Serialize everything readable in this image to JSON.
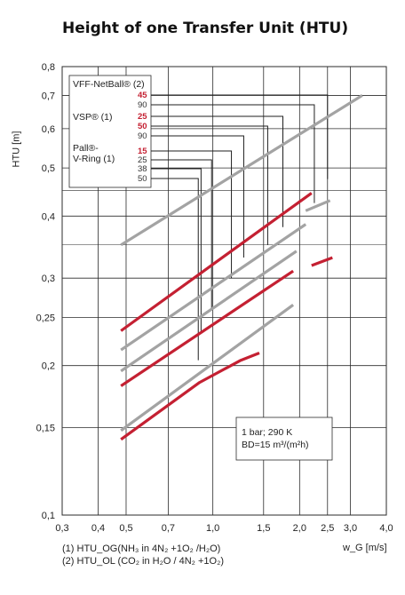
{
  "chart_data": {
    "type": "line",
    "title": "Height of one Transfer Unit (HTU)",
    "xlabel": "w_G [m/s]",
    "ylabel": "HTU [m]",
    "x_scale": "log",
    "y_scale": "log",
    "xlim": [
      0.3,
      4.0
    ],
    "ylim": [
      0.1,
      0.8
    ],
    "x_ticks": [
      "0,3",
      "0,4",
      "0,5",
      "0,7",
      "1,0",
      "1,5",
      "2,0",
      "2,5",
      "3,0",
      "4,0"
    ],
    "x_tick_values": [
      0.3,
      0.4,
      0.5,
      0.7,
      1.0,
      1.5,
      2.0,
      2.5,
      3.0,
      4.0
    ],
    "y_ticks": [
      "0,1",
      "0,15",
      "0,2",
      "0,25",
      "0,3",
      "0,4",
      "0,5",
      "0,6",
      "0,7",
      "0,8"
    ],
    "y_tick_values": [
      0.1,
      0.15,
      0.2,
      0.25,
      0.3,
      0.4,
      0.5,
      0.6,
      0.7,
      0.8
    ],
    "grid": true,
    "colors": {
      "red": "#c42032",
      "gray": "#a3a3a3"
    },
    "legend_box": {
      "groups": [
        {
          "name": "VFF-NetBall® (2)",
          "labels": [
            {
              "text": "45",
              "color": "red"
            },
            {
              "text": "90",
              "color": "gray"
            }
          ]
        },
        {
          "name": "VSP® (1)",
          "labels": [
            {
              "text": "25",
              "color": "red"
            },
            {
              "text": "50",
              "color": "red"
            },
            {
              "text": "90",
              "color": "gray"
            }
          ]
        },
        {
          "name_lines": [
            "Pall®-",
            "V-Ring (1)"
          ],
          "labels": [
            {
              "text": "15",
              "color": "red"
            },
            {
              "text": "25",
              "color": "gray"
            },
            {
              "text": "38",
              "color": "gray"
            },
            {
              "text": "50",
              "color": "gray"
            }
          ]
        }
      ]
    },
    "annotation": {
      "line1": "1 bar; 290 K",
      "line2": "BD=15 m³/(m²h)"
    },
    "series": [
      {
        "color": "gray",
        "points": [
          [
            0.48,
            0.35
          ],
          [
            3.3,
            0.7
          ]
        ]
      },
      {
        "color": "red",
        "points": [
          [
            0.48,
            0.235
          ],
          [
            2.2,
            0.445
          ]
        ]
      },
      {
        "color": "gray",
        "points": [
          [
            2.1,
            0.41
          ],
          [
            2.55,
            0.43
          ]
        ]
      },
      {
        "color": "gray",
        "points": [
          [
            0.48,
            0.215
          ],
          [
            2.1,
            0.385
          ]
        ]
      },
      {
        "color": "red",
        "points": [
          [
            2.2,
            0.318
          ],
          [
            2.6,
            0.33
          ]
        ]
      },
      {
        "color": "gray",
        "points": [
          [
            0.48,
            0.195
          ],
          [
            1.95,
            0.34
          ]
        ]
      },
      {
        "color": "red",
        "points": [
          [
            0.48,
            0.182
          ],
          [
            1.9,
            0.31
          ]
        ]
      },
      {
        "color": "gray",
        "points": [
          [
            0.48,
            0.148
          ],
          [
            1.9,
            0.265
          ]
        ]
      },
      {
        "color": "red",
        "points": [
          [
            0.48,
            0.142
          ],
          [
            0.9,
            0.185
          ],
          [
            1.25,
            0.205
          ],
          [
            1.45,
            0.212
          ]
        ]
      }
    ],
    "leaders": [
      {
        "label": "45",
        "corner_x": 2.5,
        "end_y": 0.475
      },
      {
        "label": "90",
        "corner_x": 2.25,
        "end_y": 0.425
      },
      {
        "label": "25",
        "corner_x": 1.75,
        "end_y": 0.38
      },
      {
        "label": "50",
        "corner_x": 1.55,
        "end_y": 0.35
      },
      {
        "label": "90",
        "corner_x": 1.28,
        "end_y": 0.33
      },
      {
        "label": "15",
        "corner_x": 1.16,
        "end_y": 0.3
      },
      {
        "label": "25",
        "corner_x": 0.99,
        "end_y": 0.26
      },
      {
        "label": "38",
        "corner_x": 0.91,
        "end_y": 0.235
      },
      {
        "label": "50",
        "corner_x": 0.89,
        "end_y": 0.205
      }
    ]
  },
  "footnotes": {
    "line1": "(1) HTU_OG(NH₃ in 4N₂ +1O₂ /H₂O)",
    "line2": "(2) HTU_OL (CO₂ in H₂O / 4N₂ +1O₂)"
  }
}
